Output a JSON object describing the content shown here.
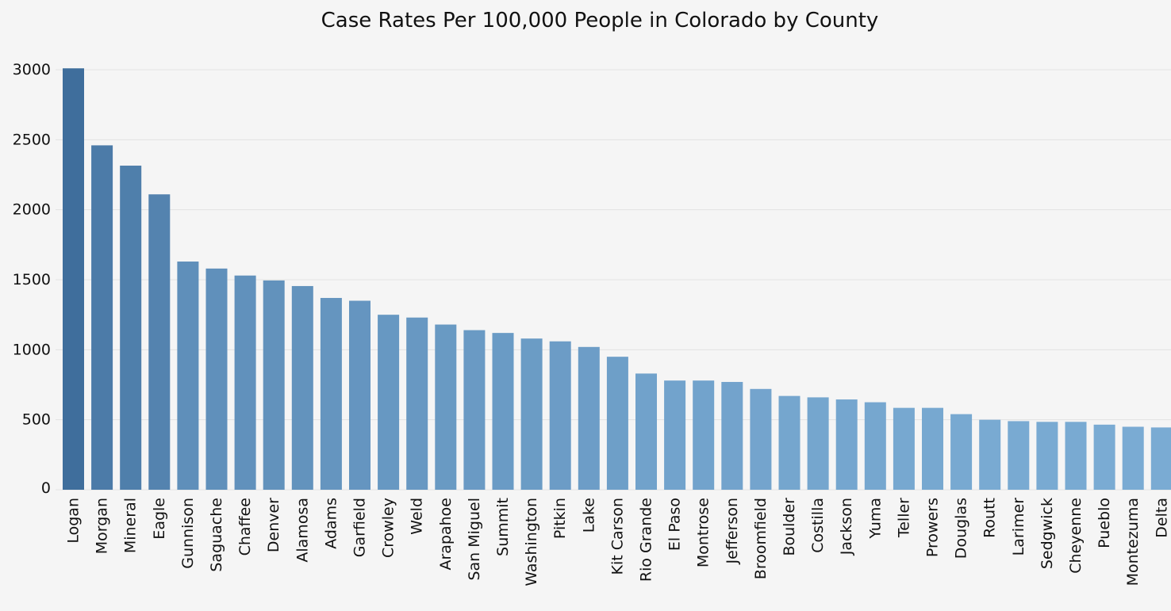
{
  "chart_data": {
    "type": "bar",
    "title": "Case Rates Per 100,000 People in Colorado by County",
    "xlabel": "",
    "ylabel": "",
    "ylim": [
      0,
      3000
    ],
    "yticks": [
      0,
      500,
      1000,
      1500,
      2000,
      2500,
      3000
    ],
    "grid": true,
    "legend": "none",
    "colors": {
      "dark": "#3f6e9c",
      "light": "#7aabd3",
      "grid": "#e2e2e2",
      "background": "#f5f5f5"
    },
    "categories": [
      "Logan",
      "Morgan",
      "Mineral",
      "Eagle",
      "Gunnison",
      "Saguache",
      "Chaffee",
      "Denver",
      "Alamosa",
      "Adams",
      "Garfield",
      "Crowley",
      "Weld",
      "Arapahoe",
      "San Miguel",
      "Summit",
      "Washington",
      "Pitkin",
      "Lake",
      "Kit Carson",
      "Rio Grande",
      "El Paso",
      "Montrose",
      "Jefferson",
      "Broomfield",
      "Boulder",
      "Costilla",
      "Jackson",
      "Yuma",
      "Teller",
      "Prowers",
      "Douglas",
      "Routt",
      "Larimer",
      "Sedgwick",
      "Cheyenne",
      "Pueblo",
      "Montezuma",
      "Delta"
    ],
    "values": [
      3010,
      2460,
      2315,
      2110,
      1630,
      1580,
      1530,
      1495,
      1455,
      1370,
      1350,
      1250,
      1230,
      1180,
      1140,
      1120,
      1080,
      1060,
      1020,
      950,
      830,
      780,
      780,
      770,
      720,
      670,
      660,
      645,
      625,
      585,
      585,
      540,
      500,
      490,
      485,
      485,
      465,
      450,
      445
    ]
  }
}
